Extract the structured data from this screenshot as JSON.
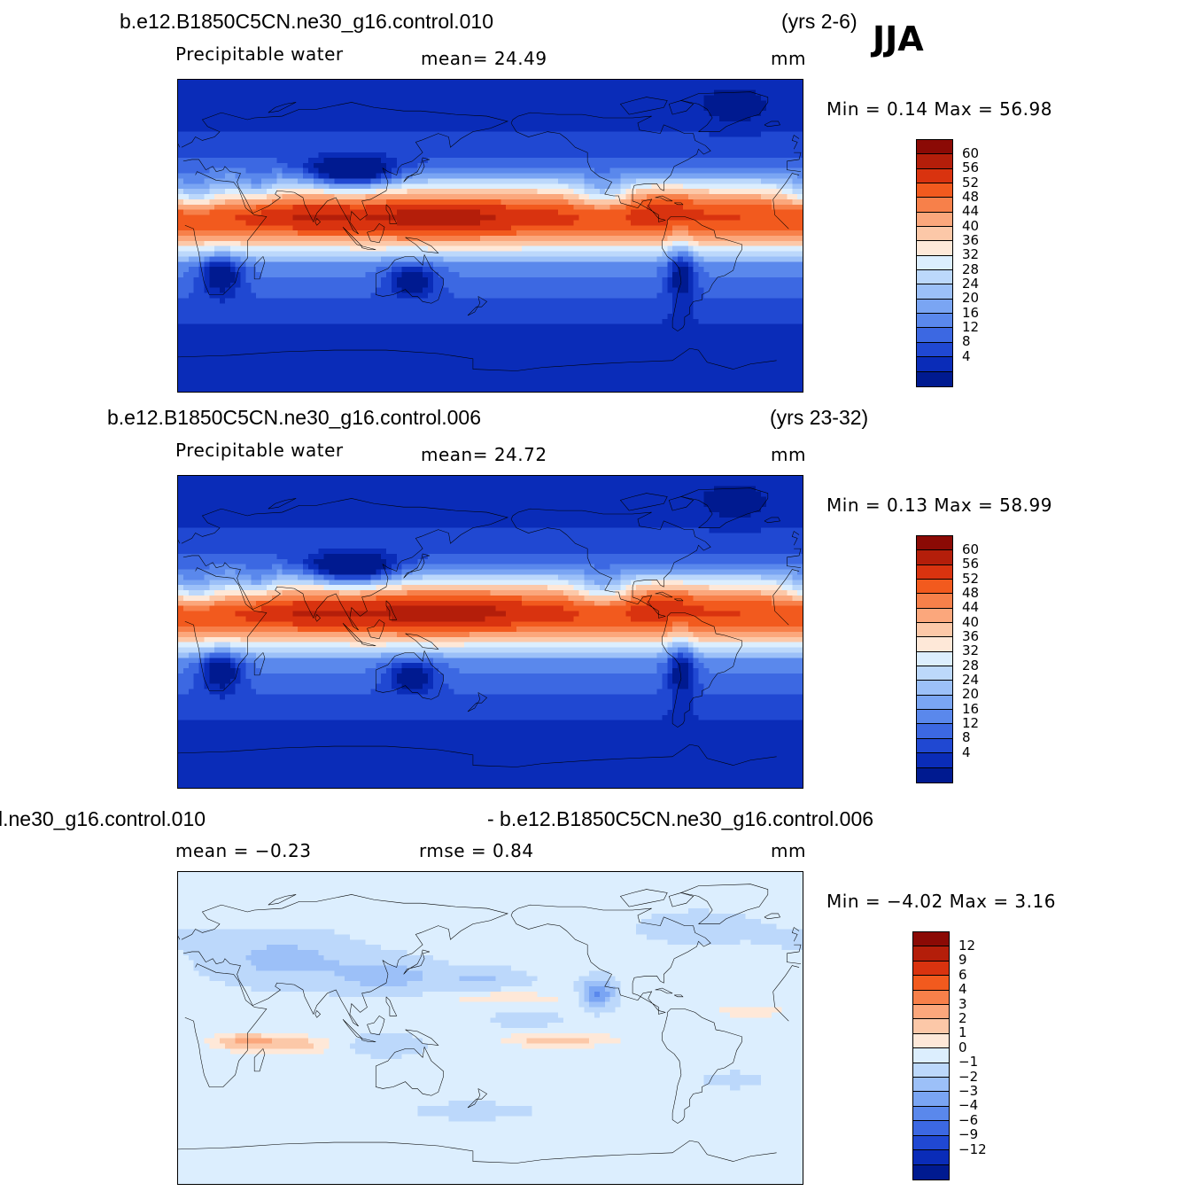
{
  "season": "JJA",
  "panels": [
    {
      "case": "b.e12.B1850C5CN.ne30_g16.control.010",
      "years": "(yrs 2-6)",
      "variable": "Precipitable  water",
      "stat_left": "mean=   24.49",
      "units": "mm",
      "minmax": "Min =     0.14  Max =    56.98",
      "field": "control_010",
      "colorbar": {
        "labels": [
          "60",
          "56",
          "52",
          "48",
          "44",
          "40",
          "36",
          "32",
          "28",
          "24",
          "20",
          "16",
          "12",
          "8",
          "4"
        ],
        "colors": [
          "#8b0a05",
          "#b41e0a",
          "#d9330f",
          "#f25a1e",
          "#f7804a",
          "#fba77c",
          "#fcc8a8",
          "#fee8d8",
          "#dceefe",
          "#bcd8fb",
          "#9cc0f8",
          "#7aa5f3",
          "#5a88ec",
          "#3c68e2",
          "#2048d2",
          "#0a2cb8",
          "#001a90"
        ]
      }
    },
    {
      "case": "b.e12.B1850C5CN.ne30_g16.control.006",
      "years": "(yrs 23-32)",
      "variable": "Precipitable  water",
      "stat_left": "mean=   24.72",
      "units": "mm",
      "minmax": "Min =     0.13  Max =    58.99",
      "field": "control_006",
      "colorbar": {
        "labels": [
          "60",
          "56",
          "52",
          "48",
          "44",
          "40",
          "36",
          "32",
          "28",
          "24",
          "20",
          "16",
          "12",
          "8",
          "4"
        ],
        "colors": [
          "#8b0a05",
          "#b41e0a",
          "#d9330f",
          "#f25a1e",
          "#f7804a",
          "#fba77c",
          "#fcc8a8",
          "#fee8d8",
          "#dceefe",
          "#bcd8fb",
          "#9cc0f8",
          "#7aa5f3",
          "#5a88ec",
          "#3c68e2",
          "#2048d2",
          "#0a2cb8",
          "#001a90"
        ]
      }
    },
    {
      "case_left": "l.ne30_g16.control.010",
      "case_right": "- b.e12.B1850C5CN.ne30_g16.control.006",
      "stat_left": "mean =   −0.23",
      "stat_mid": "rmse =     0.84",
      "units": "mm",
      "minmax": "Min =   −4.02  Max =      3.16",
      "field": "difference",
      "colorbar": {
        "labels": [
          "12",
          "9",
          "6",
          "4",
          "3",
          "2",
          "1",
          "0",
          "−1",
          "−2",
          "−3",
          "−4",
          "−6",
          "−9",
          "−12"
        ],
        "colors": [
          "#8b0a05",
          "#b41e0a",
          "#d9330f",
          "#f25a1e",
          "#f7804a",
          "#fba77c",
          "#fcc8a8",
          "#fee8d8",
          "#dceefe",
          "#bcd8fb",
          "#9cc0f8",
          "#7aa5f3",
          "#5a88ec",
          "#3c68e2",
          "#2048d2",
          "#0a2cb8",
          "#001a90"
        ]
      }
    }
  ]
}
